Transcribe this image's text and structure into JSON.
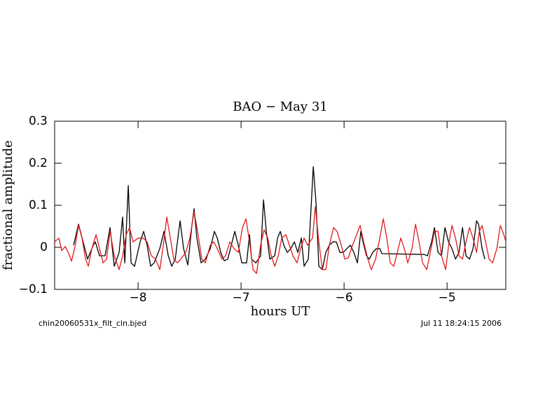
{
  "chart_data": {
    "type": "line",
    "title": "BAO − May 31",
    "xlabel": "hours UT",
    "ylabel": "fractional amplitude",
    "footer_left": "chin20060531x_filt_cln.bjed",
    "footer_right": "Jul 11 18:24:15 2006",
    "xlim": [
      -8.81,
      -4.43
    ],
    "ylim": [
      -0.1,
      0.3
    ],
    "xticks": [
      {
        "value": -8,
        "label": "−8"
      },
      {
        "value": -7,
        "label": "−7"
      },
      {
        "value": -6,
        "label": "−6"
      },
      {
        "value": -5,
        "label": "−5"
      }
    ],
    "yticks": [
      {
        "value": -0.1,
        "label": "−0.1"
      },
      0,
      0.1,
      0.2,
      0.3
    ],
    "series": [
      {
        "color": "#000000",
        "x": [
          -8.626,
          -8.578,
          -8.49,
          -8.435,
          -8.415,
          -8.374,
          -8.32,
          -8.272,
          -8.231,
          -8.184,
          -8.15,
          -8.129,
          -8.095,
          -8.068,
          -8.034,
          -7.98,
          -7.946,
          -7.912,
          -7.878,
          -7.844,
          -7.789,
          -7.748,
          -7.707,
          -7.673,
          -7.639,
          -7.592,
          -7.558,
          -7.517,
          -7.476,
          -7.456,
          -7.429,
          -7.388,
          -7.347,
          -7.299,
          -7.259,
          -7.231,
          -7.197,
          -7.163,
          -7.129,
          -7.095,
          -7.061,
          -7.027,
          -6.993,
          -6.946,
          -6.918,
          -6.898,
          -6.857,
          -6.81,
          -6.782,
          -6.755,
          -6.721,
          -6.673,
          -6.646,
          -6.619,
          -6.585,
          -6.551,
          -6.517,
          -6.483,
          -6.449,
          -6.415,
          -6.388,
          -6.347,
          -6.299,
          -6.272,
          -6.245,
          -6.211,
          -6.177,
          -6.143,
          -6.109,
          -6.075,
          -6.041,
          -6.007,
          -5.973,
          -5.939,
          -5.905,
          -5.871,
          -5.837,
          -5.816,
          -5.782,
          -5.755,
          -5.721,
          -5.687,
          -5.653,
          -5.633,
          -5.224,
          -5.19,
          -5.15,
          -5.122,
          -5.088,
          -5.054,
          -5.02,
          -4.986,
          -4.952,
          -4.918,
          -4.884,
          -4.85,
          -4.816,
          -4.782,
          -4.748,
          -4.714,
          -4.694,
          -4.66,
          -4.633
        ],
        "values": [
          0.005,
          0.055,
          -0.028,
          0.005,
          0.013,
          -0.02,
          -0.02,
          0.047,
          -0.045,
          -0.012,
          0.072,
          -0.037,
          0.147,
          -0.037,
          -0.045,
          0.013,
          0.038,
          0.005,
          -0.045,
          -0.037,
          -0.003,
          0.038,
          -0.02,
          -0.045,
          -0.028,
          0.063,
          -0.003,
          -0.042,
          0.055,
          0.092,
          0.022,
          -0.037,
          -0.028,
          -0.003,
          0.038,
          0.022,
          -0.012,
          -0.032,
          -0.028,
          0.005,
          0.038,
          0.005,
          -0.037,
          -0.037,
          0.03,
          -0.028,
          -0.037,
          -0.02,
          0.113,
          0.038,
          -0.028,
          -0.02,
          0.022,
          0.038,
          0.005,
          -0.012,
          -0.003,
          0.013,
          -0.012,
          0.022,
          -0.045,
          -0.028,
          0.192,
          0.105,
          -0.045,
          -0.053,
          -0.012,
          0.005,
          0.013,
          0.013,
          -0.012,
          -0.012,
          -0.003,
          0.005,
          -0.012,
          -0.037,
          0.038,
          0.013,
          -0.02,
          -0.028,
          -0.012,
          -0.003,
          -0.003,
          -0.015,
          -0.017,
          -0.02,
          0.013,
          0.047,
          -0.012,
          -0.02,
          0.047,
          0.013,
          -0.003,
          -0.028,
          -0.012,
          0.047,
          -0.02,
          -0.028,
          -0.003,
          0.063,
          0.055,
          -0.003,
          -0.028
        ]
      },
      {
        "color": "#e41a1c",
        "x": [
          -8.81,
          -8.769,
          -8.741,
          -8.707,
          -8.673,
          -8.646,
          -8.612,
          -8.578,
          -8.544,
          -8.51,
          -8.483,
          -8.449,
          -8.408,
          -8.374,
          -8.34,
          -8.306,
          -8.272,
          -8.231,
          -8.184,
          -8.15,
          -8.116,
          -8.082,
          -8.048,
          -8.0,
          -7.952,
          -7.912,
          -7.871,
          -7.83,
          -7.789,
          -7.755,
          -7.721,
          -7.687,
          -7.653,
          -7.619,
          -7.585,
          -7.537,
          -7.497,
          -7.456,
          -7.422,
          -7.381,
          -7.347,
          -7.299,
          -7.265,
          -7.231,
          -7.184,
          -7.15,
          -7.109,
          -7.068,
          -7.027,
          -6.986,
          -6.952,
          -6.918,
          -6.884,
          -6.85,
          -6.81,
          -6.776,
          -6.741,
          -6.707,
          -6.673,
          -6.639,
          -6.605,
          -6.565,
          -6.531,
          -6.497,
          -6.456,
          -6.422,
          -6.388,
          -6.354,
          -6.306,
          -6.279,
          -6.245,
          -6.211,
          -6.177,
          -6.143,
          -6.102,
          -6.068,
          -6.027,
          -5.993,
          -5.959,
          -5.918,
          -5.878,
          -5.844,
          -5.81,
          -5.769,
          -5.735,
          -5.694,
          -5.653,
          -5.619,
          -5.585,
          -5.551,
          -5.517,
          -5.483,
          -5.449,
          -5.415,
          -5.381,
          -5.34,
          -5.306,
          -5.272,
          -5.238,
          -5.197,
          -5.163,
          -5.122,
          -5.088,
          -5.054,
          -5.014,
          -4.98,
          -4.952,
          -4.918,
          -4.884,
          -4.85,
          -4.816,
          -4.782,
          -4.748,
          -4.714,
          -4.687,
          -4.66,
          -4.626,
          -4.592,
          -4.558,
          -4.517,
          -4.483,
          -4.449,
          -4.429
        ],
        "values": [
          0.013,
          0.022,
          -0.008,
          0.002,
          -0.015,
          -0.033,
          0.002,
          0.052,
          0.022,
          -0.028,
          -0.045,
          -0.003,
          0.03,
          -0.003,
          -0.037,
          -0.028,
          0.038,
          -0.02,
          -0.053,
          -0.02,
          0.03,
          0.047,
          0.013,
          0.022,
          0.022,
          0.013,
          -0.02,
          -0.028,
          -0.053,
          0.005,
          0.072,
          0.022,
          -0.028,
          -0.037,
          -0.028,
          -0.012,
          0.022,
          0.085,
          0.038,
          -0.028,
          -0.037,
          0.005,
          0.013,
          -0.003,
          -0.028,
          -0.02,
          0.013,
          -0.003,
          -0.012,
          0.047,
          0.068,
          0.013,
          -0.053,
          -0.062,
          0.005,
          0.042,
          0.022,
          -0.02,
          -0.045,
          -0.02,
          0.022,
          0.03,
          0.005,
          -0.02,
          -0.037,
          -0.003,
          0.022,
          0.005,
          0.022,
          0.097,
          0.013,
          -0.053,
          -0.053,
          0.005,
          0.047,
          0.038,
          0.005,
          -0.028,
          -0.025,
          0.005,
          0.03,
          0.052,
          0.013,
          -0.028,
          -0.053,
          -0.028,
          0.022,
          0.068,
          0.022,
          -0.037,
          -0.045,
          -0.012,
          0.022,
          -0.003,
          -0.037,
          -0.003,
          0.055,
          0.013,
          -0.037,
          -0.053,
          -0.012,
          0.038,
          0.038,
          -0.02,
          -0.053,
          0.013,
          0.052,
          0.022,
          -0.02,
          -0.028,
          0.013,
          0.047,
          0.022,
          -0.012,
          0.038,
          0.052,
          0.013,
          -0.028,
          -0.037,
          -0.003,
          0.052,
          0.03,
          0.013
        ]
      }
    ]
  }
}
